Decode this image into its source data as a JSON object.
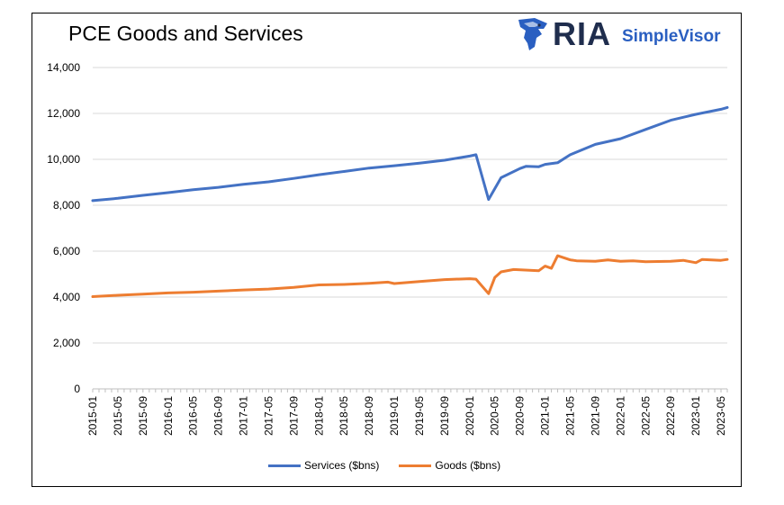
{
  "chart_data": {
    "type": "line",
    "title": "PCE Goods and Services",
    "xlabel": "",
    "ylabel": "",
    "ylim": [
      0,
      14000
    ],
    "yticks": [
      0,
      2000,
      4000,
      6000,
      8000,
      10000,
      12000,
      14000
    ],
    "ytick_labels": [
      "0",
      "2,000",
      "4,000",
      "6,000",
      "8,000",
      "10,000",
      "12,000",
      "14,000"
    ],
    "x_start": "2015-01",
    "x_end": "2023-06",
    "xtick_labels": [
      "2015-01",
      "2015-05",
      "2015-09",
      "2016-01",
      "2016-05",
      "2016-09",
      "2017-01",
      "2017-05",
      "2017-09",
      "2018-01",
      "2018-05",
      "2018-09",
      "2019-01",
      "2019-05",
      "2019-09",
      "2020-01",
      "2020-05",
      "2020-09",
      "2021-01",
      "2021-05",
      "2021-09",
      "2022-01",
      "2022-05",
      "2022-09",
      "2023-01",
      "2023-05"
    ],
    "grid": true,
    "legend_position": "bottom",
    "series": [
      {
        "name": "Services ($bns)",
        "color": "#4472C4",
        "points": [
          [
            "2015-01",
            8200
          ],
          [
            "2015-05",
            8300
          ],
          [
            "2015-09",
            8430
          ],
          [
            "2016-01",
            8550
          ],
          [
            "2016-05",
            8680
          ],
          [
            "2016-09",
            8780
          ],
          [
            "2017-01",
            8910
          ],
          [
            "2017-05",
            9020
          ],
          [
            "2017-09",
            9170
          ],
          [
            "2018-01",
            9330
          ],
          [
            "2018-05",
            9470
          ],
          [
            "2018-09",
            9620
          ],
          [
            "2019-01",
            9720
          ],
          [
            "2019-05",
            9830
          ],
          [
            "2019-09",
            9960
          ],
          [
            "2020-01",
            10140
          ],
          [
            "2020-02",
            10200
          ],
          [
            "2020-04",
            8250
          ],
          [
            "2020-06",
            9200
          ],
          [
            "2020-09",
            9600
          ],
          [
            "2020-10",
            9700
          ],
          [
            "2020-12",
            9680
          ],
          [
            "2021-01",
            9780
          ],
          [
            "2021-03",
            9850
          ],
          [
            "2021-05",
            10200
          ],
          [
            "2021-09",
            10650
          ],
          [
            "2022-01",
            10900
          ],
          [
            "2022-05",
            11300
          ],
          [
            "2022-09",
            11700
          ],
          [
            "2023-01",
            11960
          ],
          [
            "2023-05",
            12180
          ],
          [
            "2023-06",
            12260
          ]
        ]
      },
      {
        "name": "Goods ($bns)",
        "color": "#ED7D31",
        "points": [
          [
            "2015-01",
            4020
          ],
          [
            "2015-05",
            4080
          ],
          [
            "2015-09",
            4130
          ],
          [
            "2016-01",
            4180
          ],
          [
            "2016-05",
            4210
          ],
          [
            "2016-09",
            4260
          ],
          [
            "2017-01",
            4310
          ],
          [
            "2017-05",
            4350
          ],
          [
            "2017-09",
            4420
          ],
          [
            "2018-01",
            4530
          ],
          [
            "2018-05",
            4550
          ],
          [
            "2018-09",
            4600
          ],
          [
            "2018-12",
            4650
          ],
          [
            "2019-01",
            4590
          ],
          [
            "2019-05",
            4680
          ],
          [
            "2019-09",
            4760
          ],
          [
            "2020-01",
            4800
          ],
          [
            "2020-02",
            4780
          ],
          [
            "2020-04",
            4150
          ],
          [
            "2020-05",
            4850
          ],
          [
            "2020-06",
            5100
          ],
          [
            "2020-08",
            5200
          ],
          [
            "2020-12",
            5150
          ],
          [
            "2021-01",
            5350
          ],
          [
            "2021-02",
            5250
          ],
          [
            "2021-03",
            5800
          ],
          [
            "2021-05",
            5620
          ],
          [
            "2021-06",
            5580
          ],
          [
            "2021-09",
            5560
          ],
          [
            "2021-11",
            5620
          ],
          [
            "2022-01",
            5560
          ],
          [
            "2022-03",
            5580
          ],
          [
            "2022-05",
            5540
          ],
          [
            "2022-09",
            5560
          ],
          [
            "2022-11",
            5600
          ],
          [
            "2023-01",
            5500
          ],
          [
            "2023-02",
            5640
          ],
          [
            "2023-05",
            5600
          ],
          [
            "2023-06",
            5640
          ]
        ]
      }
    ]
  },
  "branding": {
    "ria_text": "RIA",
    "simplevisor_text": "SimpleVisor",
    "logo_colors": {
      "eagle": "#2a5fc1",
      "ria": "#1f2d4d",
      "simplevisor": "#2a5fc1"
    }
  }
}
